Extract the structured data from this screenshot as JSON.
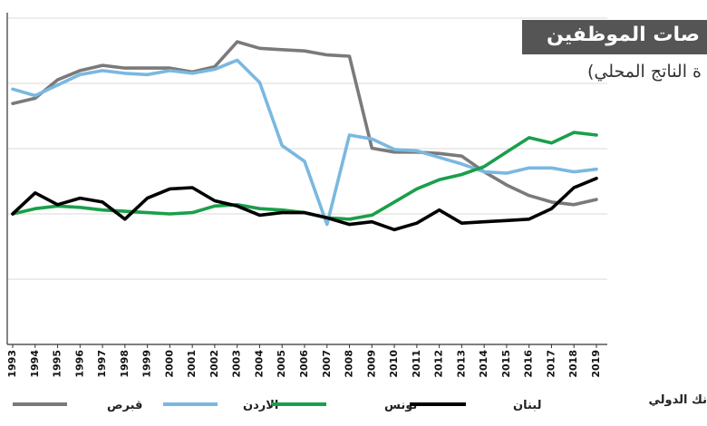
{
  "chart_data": {
    "type": "line",
    "title": "صات الموظفين",
    "subtitle": "ة الناتج المحلي)",
    "source": "نك الدولي",
    "x": [
      1993,
      1994,
      1995,
      1996,
      1997,
      1998,
      1999,
      2000,
      2001,
      2002,
      2003,
      2004,
      2005,
      2006,
      2007,
      2008,
      2009,
      2010,
      2011,
      2012,
      2013,
      2014,
      2015,
      2016,
      2017,
      2018,
      2019
    ],
    "y_grid_lines": 5,
    "legend_placement": "bottom",
    "series": [
      {
        "name": "قبرص",
        "color": "#7a7a7a",
        "values": [
          4.2,
          4.4,
          5.1,
          5.45,
          5.65,
          5.55,
          5.55,
          5.55,
          5.4,
          5.6,
          6.55,
          6.3,
          6.25,
          6.2,
          6.05,
          6.0,
          2.5,
          2.35,
          2.35,
          2.3,
          2.2,
          1.6,
          1.1,
          0.7,
          0.45,
          0.35,
          0.55
        ]
      },
      {
        "name": "الاردن",
        "color": "#7ab8e0",
        "values": [
          4.75,
          4.5,
          4.9,
          5.3,
          5.45,
          5.35,
          5.3,
          5.45,
          5.35,
          5.5,
          5.85,
          5.0,
          2.6,
          2.0,
          -0.4,
          3.0,
          2.85,
          2.45,
          2.4,
          2.15,
          1.9,
          1.6,
          1.55,
          1.75,
          1.75,
          1.6,
          1.7
        ]
      },
      {
        "name": "تونس",
        "color": "#1a9f4a",
        "values": [
          0.0,
          0.2,
          0.3,
          0.25,
          0.15,
          0.1,
          0.05,
          0.0,
          0.05,
          0.3,
          0.35,
          0.2,
          0.15,
          0.05,
          -0.15,
          -0.2,
          -0.05,
          0.45,
          0.95,
          1.3,
          1.5,
          1.8,
          2.35,
          2.9,
          2.7,
          3.1,
          3.0
        ]
      },
      {
        "name": "لبنان",
        "color": "#000000",
        "values": [
          0.0,
          0.8,
          0.35,
          0.6,
          0.45,
          -0.2,
          0.6,
          0.95,
          1.0,
          0.5,
          0.3,
          -0.05,
          0.05,
          0.05,
          -0.15,
          -0.4,
          -0.3,
          -0.6,
          -0.35,
          0.15,
          -0.35,
          -0.3,
          -0.25,
          -0.2,
          0.2,
          1.0,
          1.35
        ]
      }
    ]
  }
}
